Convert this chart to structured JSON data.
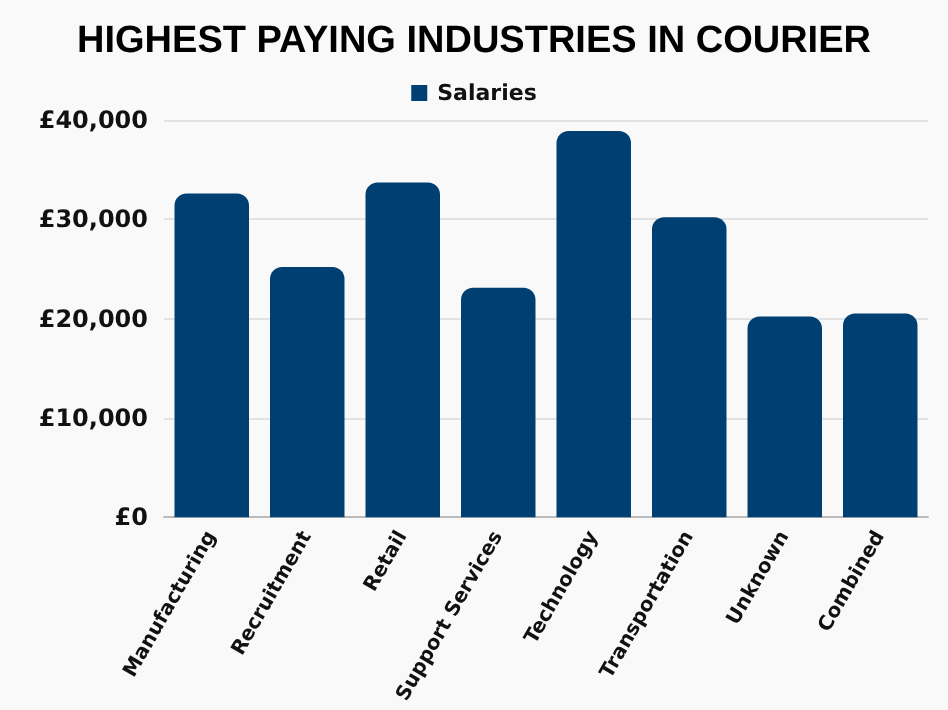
{
  "chart_data": {
    "type": "bar",
    "title": "HIGHEST PAYING INDUSTRIES IN COURIER",
    "categories": [
      "Manufacturing",
      "Recruitment",
      "Retail",
      "Support Services",
      "Technology",
      "Transportation",
      "Unknown",
      "Combined"
    ],
    "series": [
      {
        "name": "Salaries",
        "color": "#003f72",
        "values": [
          32600,
          25200,
          33700,
          23100,
          38900,
          30200,
          20200,
          20500
        ]
      }
    ],
    "ylim": [
      0,
      40000
    ],
    "yticks": [
      {
        "value": 0,
        "label": "£0"
      },
      {
        "value": 10000,
        "label": "£10,000"
      },
      {
        "value": 20000,
        "label": "£20,000"
      },
      {
        "value": 30000,
        "label": "£30,000"
      },
      {
        "value": 40000,
        "label": "£40,000"
      }
    ],
    "grid": "y",
    "legend": "top"
  }
}
